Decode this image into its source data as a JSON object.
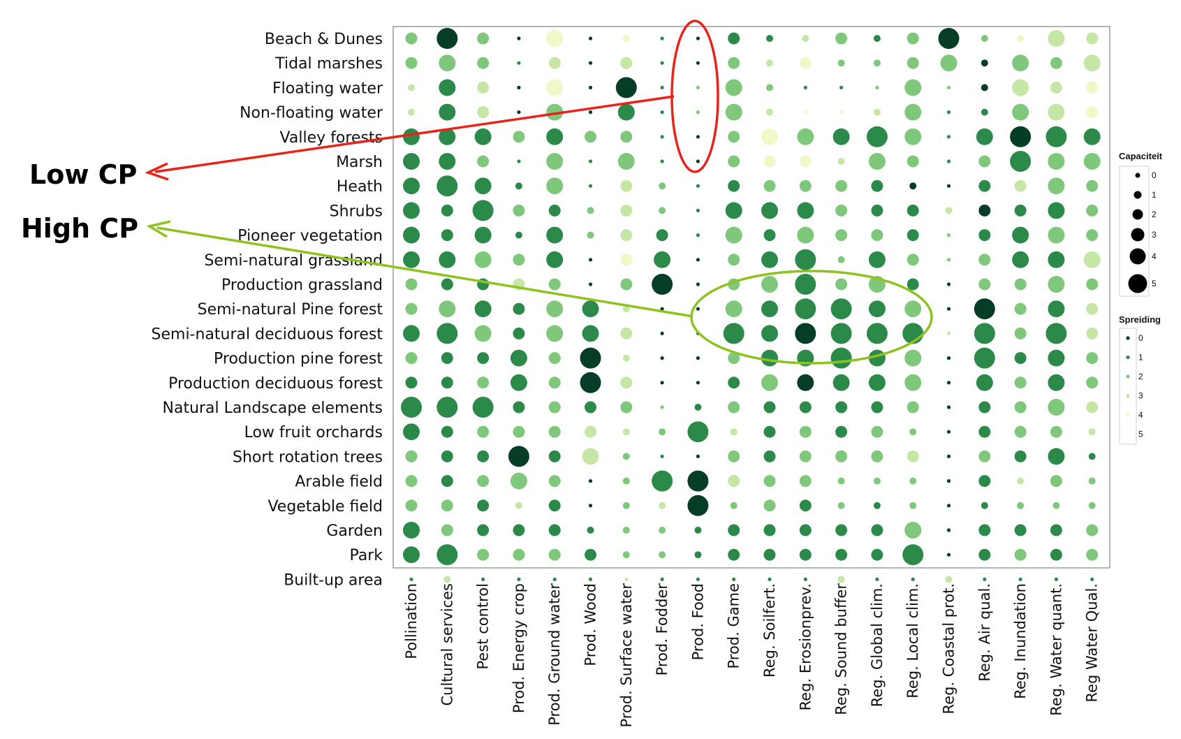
{
  "chart_data": {
    "type": "bubble-matrix",
    "rows": [
      "Beach & Dunes",
      "Tidal marshes",
      "Floating water",
      "Non-floating water",
      "Valley forests",
      "Marsh",
      "Heath",
      "Shrubs",
      "Pioneer vegetation",
      "Semi-natural grassland",
      "Production grassland",
      "Semi-natural Pine forest",
      "Semi-natural deciduous forest",
      "Production pine forest",
      "Production deciduous forest",
      "Natural Landscape elements",
      "Low fruit orchards",
      "Short rotation trees",
      "Arable field",
      "Vegetable field",
      "Garden",
      "Park",
      "Built-up area"
    ],
    "columns": [
      "Pollination",
      "Cultural services",
      "Pest control",
      "Prod. Energy crop",
      "Prod. Ground water",
      "Prod. Wood",
      "Prod. Surface water",
      "Prod. Fodder",
      "Prod. Food",
      "Prod. Game",
      "Reg. Soilfert.",
      "Reg. Erosionprev.",
      "Reg. Sound buffer",
      "Reg. Global clim.",
      "Reg. Local clim.",
      "Reg. Coastal prot.",
      "Reg. Air qual.",
      "Reg. Inundation",
      "Reg. Water quant.",
      "Reg Water Qual."
    ],
    "size_note": "Capaciteit values 0-5 per row, one per column",
    "size": [
      [
        2,
        4,
        2,
        0,
        3,
        0,
        1,
        0,
        0,
        2,
        1,
        1,
        2,
        1,
        2,
        4,
        1,
        1,
        3,
        2
      ],
      [
        2,
        3,
        2,
        0,
        2,
        0,
        2,
        0,
        0,
        2,
        1,
        2,
        1,
        1,
        2,
        3,
        1,
        3,
        2,
        3
      ],
      [
        1,
        3,
        2,
        0,
        3,
        0,
        4,
        0,
        0,
        3,
        1,
        0,
        0,
        0,
        3,
        0,
        1,
        3,
        2,
        2
      ],
      [
        1,
        3,
        2,
        0,
        3,
        0,
        3,
        0,
        0,
        3,
        1,
        0,
        0,
        1,
        3,
        0,
        1,
        3,
        3,
        2
      ],
      [
        3,
        3,
        3,
        2,
        3,
        2,
        2,
        0,
        0,
        2,
        3,
        3,
        3,
        4,
        3,
        0,
        3,
        4,
        4,
        3
      ],
      [
        3,
        3,
        2,
        0,
        3,
        0,
        3,
        0,
        0,
        2,
        2,
        2,
        1,
        3,
        2,
        0,
        2,
        4,
        3,
        3
      ],
      [
        3,
        4,
        3,
        1,
        3,
        0,
        2,
        1,
        0,
        2,
        2,
        2,
        2,
        2,
        1,
        0,
        2,
        2,
        3,
        2
      ],
      [
        3,
        2,
        4,
        2,
        2,
        1,
        2,
        1,
        0,
        3,
        3,
        3,
        2,
        2,
        2,
        1,
        2,
        2,
        3,
        2
      ],
      [
        3,
        2,
        3,
        1,
        3,
        1,
        2,
        2,
        0,
        3,
        2,
        3,
        2,
        2,
        2,
        0,
        2,
        3,
        3,
        2
      ],
      [
        3,
        3,
        3,
        2,
        3,
        0,
        2,
        3,
        0,
        2,
        3,
        4,
        1,
        3,
        2,
        0,
        2,
        3,
        3,
        3
      ],
      [
        2,
        2,
        2,
        2,
        2,
        0,
        2,
        4,
        0,
        2,
        3,
        4,
        2,
        3,
        2,
        0,
        2,
        2,
        3,
        2
      ],
      [
        2,
        3,
        3,
        2,
        3,
        3,
        1,
        0,
        0,
        3,
        3,
        4,
        4,
        3,
        3,
        0,
        4,
        2,
        3,
        2
      ],
      [
        3,
        4,
        3,
        2,
        3,
        3,
        2,
        0,
        0,
        4,
        3,
        4,
        4,
        4,
        4,
        0,
        4,
        2,
        4,
        2
      ],
      [
        2,
        2,
        2,
        3,
        2,
        4,
        1,
        0,
        0,
        2,
        3,
        3,
        4,
        3,
        3,
        0,
        4,
        2,
        3,
        2
      ],
      [
        2,
        2,
        2,
        3,
        2,
        4,
        2,
        0,
        0,
        2,
        3,
        3,
        3,
        3,
        3,
        0,
        3,
        2,
        3,
        2
      ],
      [
        4,
        4,
        4,
        2,
        2,
        2,
        2,
        0,
        1,
        2,
        2,
        2,
        2,
        2,
        2,
        0,
        2,
        2,
        3,
        2
      ],
      [
        3,
        2,
        2,
        2,
        2,
        2,
        1,
        1,
        4,
        1,
        2,
        2,
        2,
        2,
        1,
        0,
        2,
        2,
        2,
        1
      ],
      [
        2,
        2,
        2,
        4,
        2,
        3,
        1,
        0,
        0,
        2,
        2,
        2,
        2,
        2,
        2,
        0,
        2,
        2,
        3,
        1
      ],
      [
        2,
        2,
        2,
        3,
        2,
        0,
        1,
        4,
        4,
        2,
        2,
        2,
        1,
        1,
        1,
        0,
        2,
        1,
        2,
        1
      ],
      [
        2,
        2,
        2,
        1,
        2,
        0,
        1,
        1,
        4,
        1,
        2,
        2,
        1,
        1,
        1,
        0,
        1,
        1,
        1,
        1
      ],
      [
        3,
        2,
        2,
        2,
        2,
        1,
        1,
        1,
        1,
        2,
        2,
        2,
        2,
        2,
        3,
        0,
        2,
        2,
        2,
        2
      ],
      [
        3,
        4,
        2,
        2,
        2,
        2,
        1,
        1,
        1,
        2,
        2,
        2,
        2,
        2,
        4,
        0,
        2,
        2,
        2,
        2
      ],
      [
        0,
        1,
        0,
        0,
        0,
        0,
        0,
        0,
        0,
        0,
        0,
        0,
        1,
        0,
        0,
        1,
        0,
        0,
        0,
        0
      ]
    ],
    "color_note": "Spreiding values 0-5 per row, one per column",
    "color": [
      [
        2,
        0,
        2,
        0,
        4,
        0,
        4,
        1,
        0,
        1,
        1,
        3,
        2,
        1,
        2,
        0,
        2,
        4,
        3,
        3
      ],
      [
        2,
        2,
        2,
        1,
        3,
        0,
        3,
        1,
        0,
        2,
        3,
        4,
        2,
        2,
        2,
        2,
        0,
        2,
        2,
        3
      ],
      [
        3,
        1,
        3,
        0,
        4,
        0,
        0,
        1,
        2,
        2,
        2,
        1,
        1,
        2,
        2,
        2,
        0,
        3,
        3,
        4
      ],
      [
        3,
        1,
        3,
        0,
        2,
        0,
        1,
        1,
        2,
        2,
        3,
        4,
        4,
        3,
        2,
        1,
        1,
        2,
        3,
        4
      ],
      [
        1,
        1,
        1,
        2,
        1,
        2,
        2,
        1,
        0,
        2,
        4,
        2,
        1,
        1,
        2,
        1,
        1,
        0,
        1,
        1
      ],
      [
        1,
        1,
        2,
        1,
        2,
        1,
        2,
        1,
        0,
        2,
        4,
        4,
        3,
        2,
        2,
        1,
        2,
        1,
        2,
        2
      ],
      [
        1,
        1,
        1,
        1,
        2,
        1,
        3,
        2,
        1,
        1,
        2,
        2,
        2,
        1,
        0,
        0,
        1,
        3,
        2,
        2
      ],
      [
        1,
        1,
        1,
        2,
        1,
        2,
        3,
        2,
        1,
        1,
        1,
        1,
        2,
        1,
        1,
        3,
        0,
        1,
        1,
        2
      ],
      [
        1,
        1,
        1,
        1,
        1,
        2,
        3,
        1,
        1,
        2,
        1,
        2,
        2,
        2,
        1,
        2,
        1,
        1,
        2,
        2
      ],
      [
        1,
        1,
        2,
        2,
        1,
        0,
        4,
        1,
        0,
        2,
        1,
        1,
        2,
        1,
        2,
        2,
        2,
        1,
        1,
        3
      ],
      [
        2,
        1,
        1,
        3,
        2,
        0,
        2,
        0,
        0,
        2,
        2,
        1,
        2,
        2,
        1,
        0,
        2,
        2,
        2,
        2
      ],
      [
        2,
        2,
        1,
        1,
        2,
        1,
        3,
        0,
        0,
        2,
        1,
        1,
        1,
        1,
        2,
        0,
        0,
        2,
        1,
        3
      ],
      [
        1,
        1,
        2,
        1,
        2,
        1,
        3,
        0,
        1,
        1,
        1,
        0,
        1,
        1,
        1,
        3,
        1,
        2,
        1,
        3
      ],
      [
        2,
        1,
        1,
        1,
        2,
        0,
        3,
        0,
        0,
        2,
        1,
        1,
        1,
        1,
        2,
        0,
        1,
        1,
        1,
        2
      ],
      [
        1,
        1,
        2,
        1,
        2,
        0,
        3,
        0,
        0,
        1,
        2,
        0,
        1,
        1,
        2,
        0,
        1,
        2,
        1,
        2
      ],
      [
        1,
        1,
        1,
        1,
        2,
        1,
        2,
        2,
        1,
        2,
        1,
        1,
        1,
        1,
        2,
        0,
        1,
        2,
        2,
        3
      ],
      [
        1,
        1,
        2,
        2,
        2,
        3,
        3,
        2,
        1,
        3,
        1,
        2,
        1,
        2,
        2,
        0,
        1,
        2,
        2,
        3
      ],
      [
        2,
        1,
        1,
        0,
        1,
        3,
        2,
        1,
        0,
        2,
        1,
        2,
        2,
        2,
        3,
        0,
        2,
        1,
        1,
        1
      ],
      [
        2,
        1,
        2,
        2,
        2,
        0,
        2,
        1,
        0,
        3,
        2,
        2,
        2,
        2,
        2,
        0,
        1,
        3,
        2,
        2
      ],
      [
        2,
        2,
        1,
        3,
        1,
        0,
        2,
        3,
        0,
        2,
        2,
        1,
        2,
        1,
        2,
        0,
        1,
        2,
        2,
        2
      ],
      [
        1,
        2,
        1,
        1,
        1,
        1,
        2,
        2,
        1,
        1,
        1,
        1,
        1,
        1,
        2,
        0,
        1,
        1,
        1,
        2
      ],
      [
        1,
        1,
        2,
        2,
        2,
        1,
        2,
        2,
        1,
        1,
        1,
        1,
        1,
        1,
        1,
        0,
        1,
        2,
        1,
        2
      ],
      [
        1,
        3,
        1,
        1,
        1,
        1,
        3,
        1,
        1,
        1,
        1,
        1,
        3,
        1,
        1,
        3,
        1,
        1,
        1,
        1
      ]
    ],
    "palette": [
      "#053d26",
      "#2b8a4a",
      "#7fc77a",
      "#c6e6a6",
      "#f1f7c6",
      "#ffffff"
    ],
    "legends": {
      "size": {
        "title": "Capaciteit",
        "ticks": [
          "0",
          "1",
          "2",
          "3",
          "4",
          "5"
        ]
      },
      "color": {
        "title": "Spreiding",
        "ticks": [
          "0",
          "1",
          "2",
          "3",
          "4",
          "5"
        ]
      }
    },
    "annotations": [
      {
        "text": "Low CP",
        "color": "#e8231a"
      },
      {
        "text": "High CP",
        "color": "#8dc21f"
      }
    ]
  }
}
